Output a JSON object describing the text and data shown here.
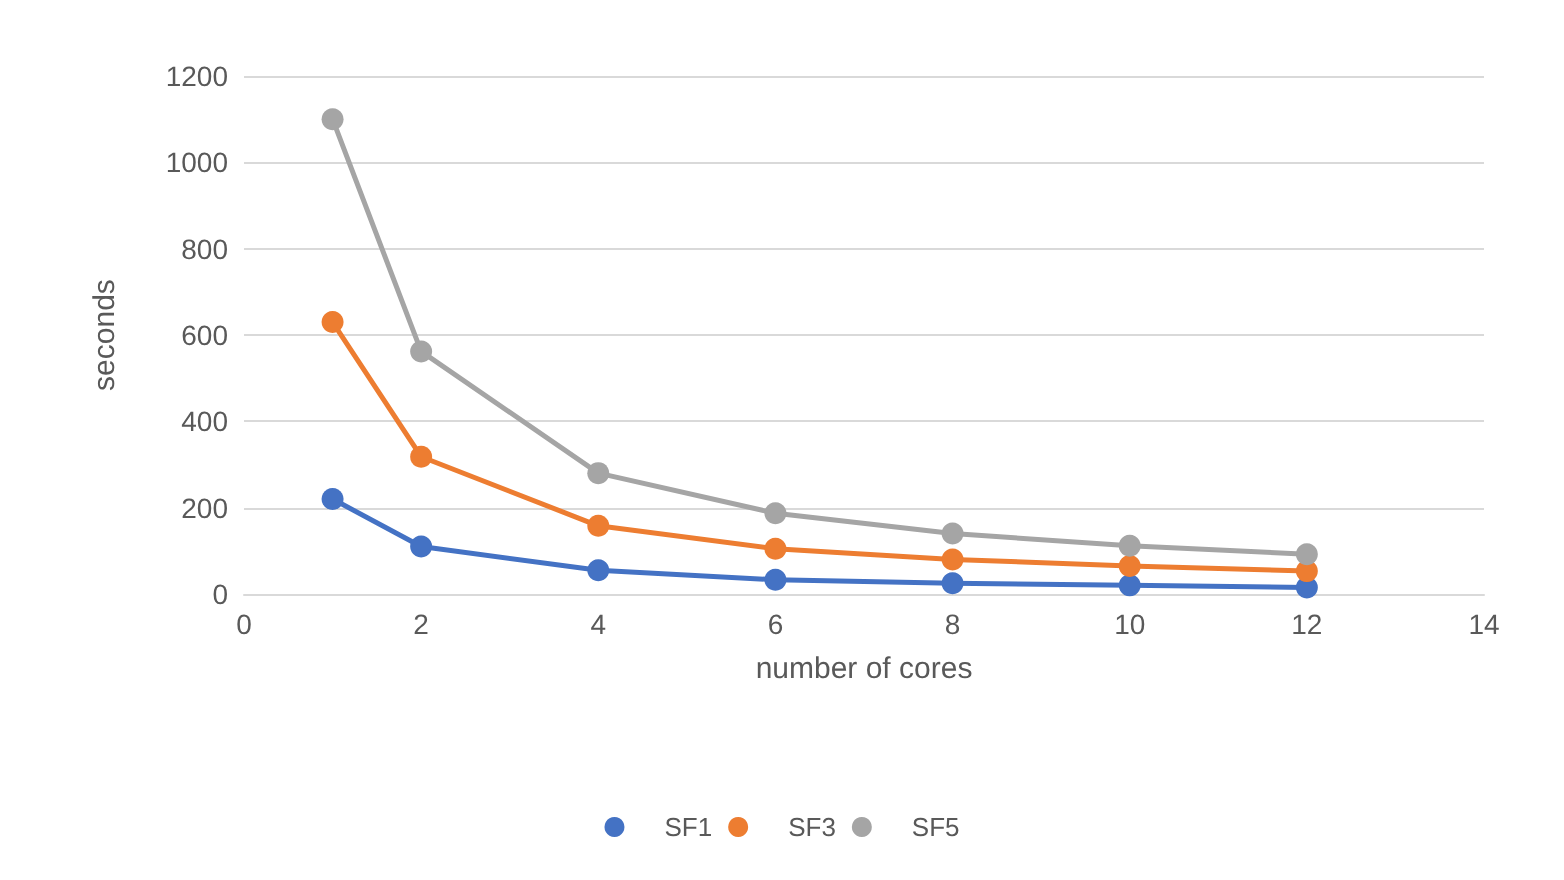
{
  "chart_data": {
    "type": "line",
    "xlabel": "number of cores",
    "ylabel": "seconds",
    "x": [
      1,
      2,
      4,
      6,
      8,
      10,
      12
    ],
    "series": [
      {
        "name": "SF1",
        "color": "#4472c4",
        "values": [
          220,
          110,
          55,
          33,
          25,
          20,
          15
        ]
      },
      {
        "name": "SF3",
        "color": "#ed7d31",
        "values": [
          630,
          318,
          158,
          105,
          80,
          65,
          53
        ]
      },
      {
        "name": "SF5",
        "color": "#a5a5a5",
        "values": [
          1100,
          562,
          280,
          187,
          140,
          112,
          92
        ]
      }
    ],
    "xlim": [
      0,
      14
    ],
    "xticks": [
      0,
      2,
      4,
      6,
      8,
      10,
      12,
      14
    ],
    "ylim": [
      0,
      1200
    ],
    "yticks": [
      0,
      200,
      400,
      600,
      800,
      1000,
      1200
    ],
    "grid": "y",
    "legend": "bottom",
    "marker": "circle",
    "line_style": "solid"
  }
}
